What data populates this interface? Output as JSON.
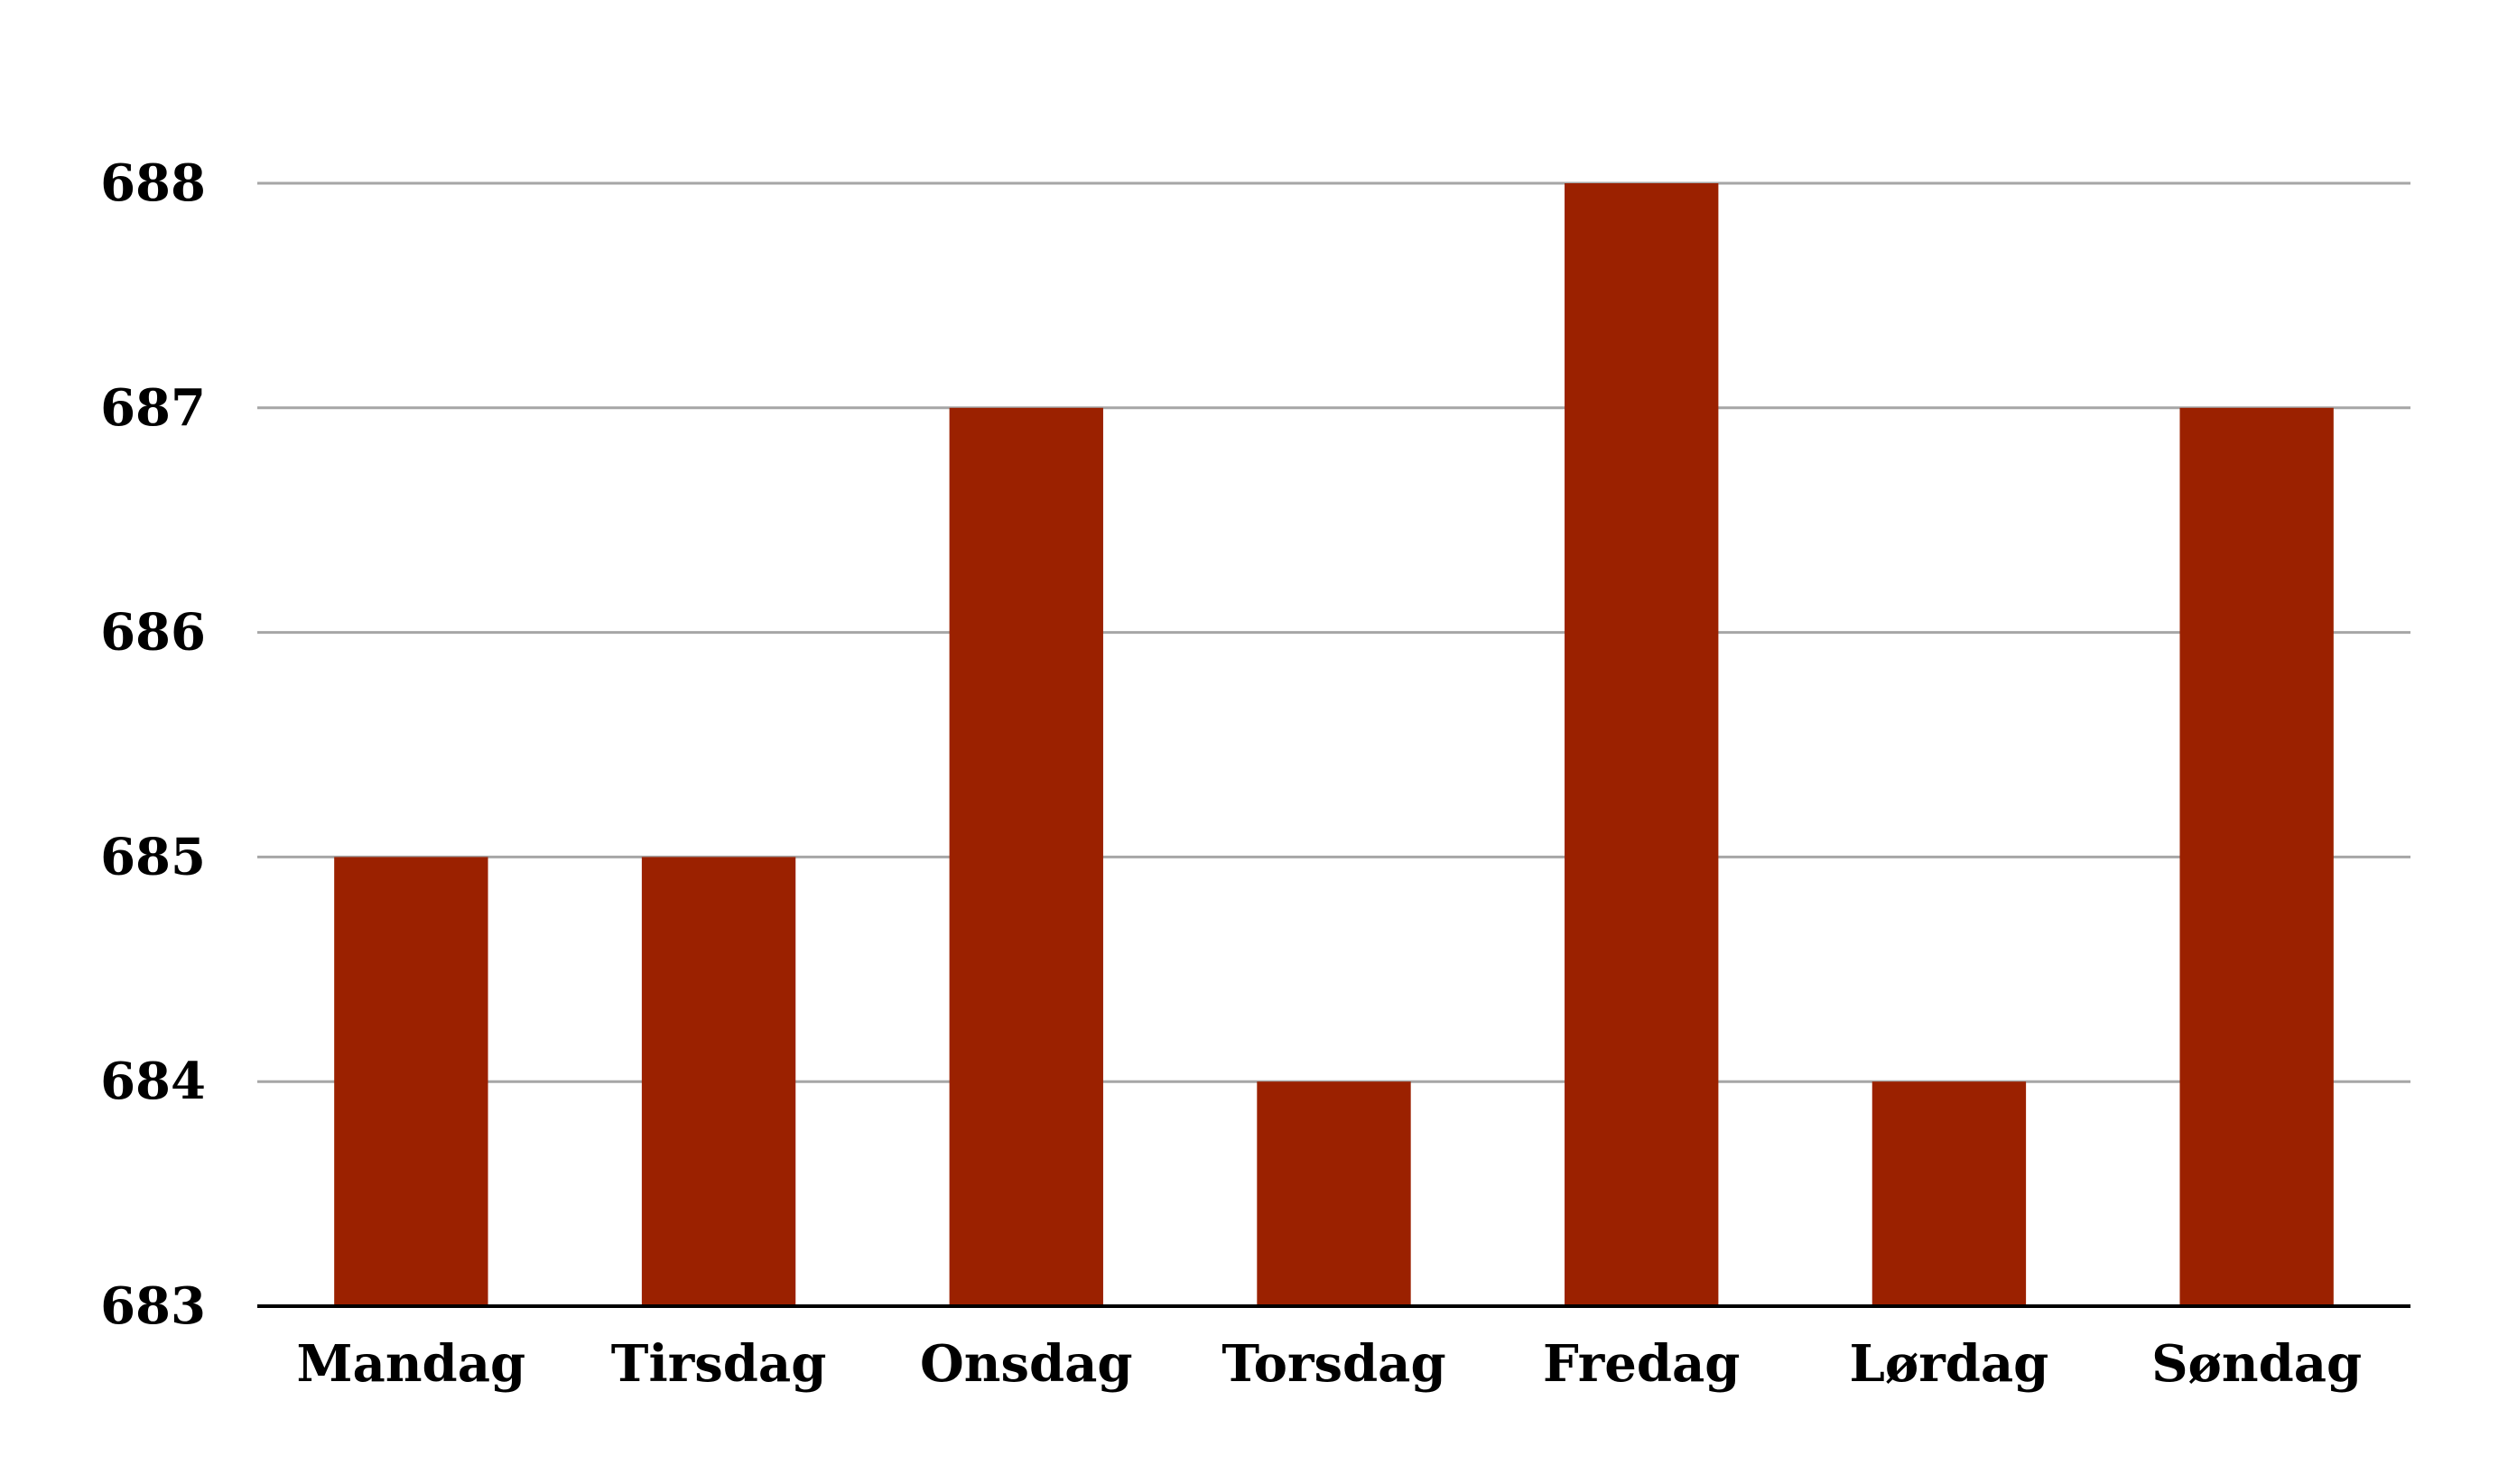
{
  "chart_data": {
    "type": "bar",
    "categories": [
      "Mandag",
      "Tirsdag",
      "Onsdag",
      "Torsdag",
      "Fredag",
      "Lørdag",
      "Søndag"
    ],
    "values": [
      685,
      685,
      687,
      684,
      688,
      684,
      687
    ],
    "ylim": [
      683,
      688
    ],
    "yticks": [
      "683",
      "684",
      "685",
      "686",
      "687",
      "688"
    ],
    "grid": true,
    "legend": "none",
    "colors": {
      "bar": "#9b2100",
      "grid": "#a6a6a6",
      "axis": "#000000",
      "text": "#000000"
    }
  }
}
